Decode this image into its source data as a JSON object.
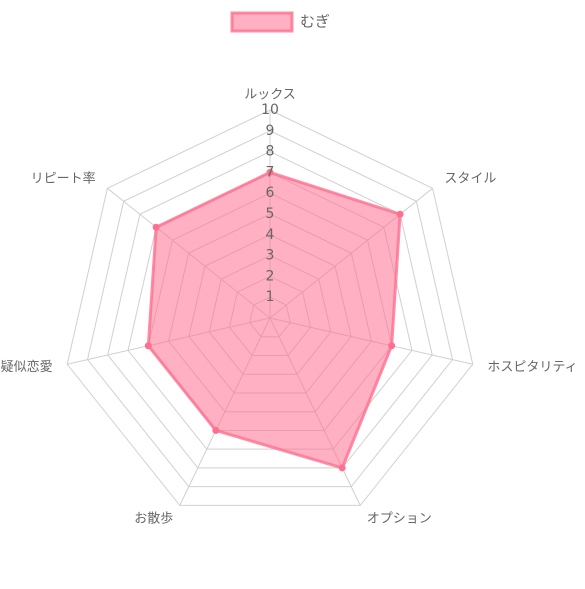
{
  "chart_data": {
    "type": "radar",
    "categories": [
      "ルックス",
      "スタイル",
      "ホスピタリティ",
      "オプション",
      "お散歩",
      "疑似恋愛",
      "リピート率"
    ],
    "series": [
      {
        "name": "むぎ",
        "color": "#ff6f8f",
        "values": [
          7,
          8,
          6,
          8,
          6,
          6,
          7
        ]
      }
    ],
    "ylim": [
      0,
      10
    ],
    "yticks": [
      1,
      2,
      3,
      4,
      5,
      6,
      7,
      8,
      9,
      10
    ],
    "grid": true,
    "legend": "top"
  }
}
